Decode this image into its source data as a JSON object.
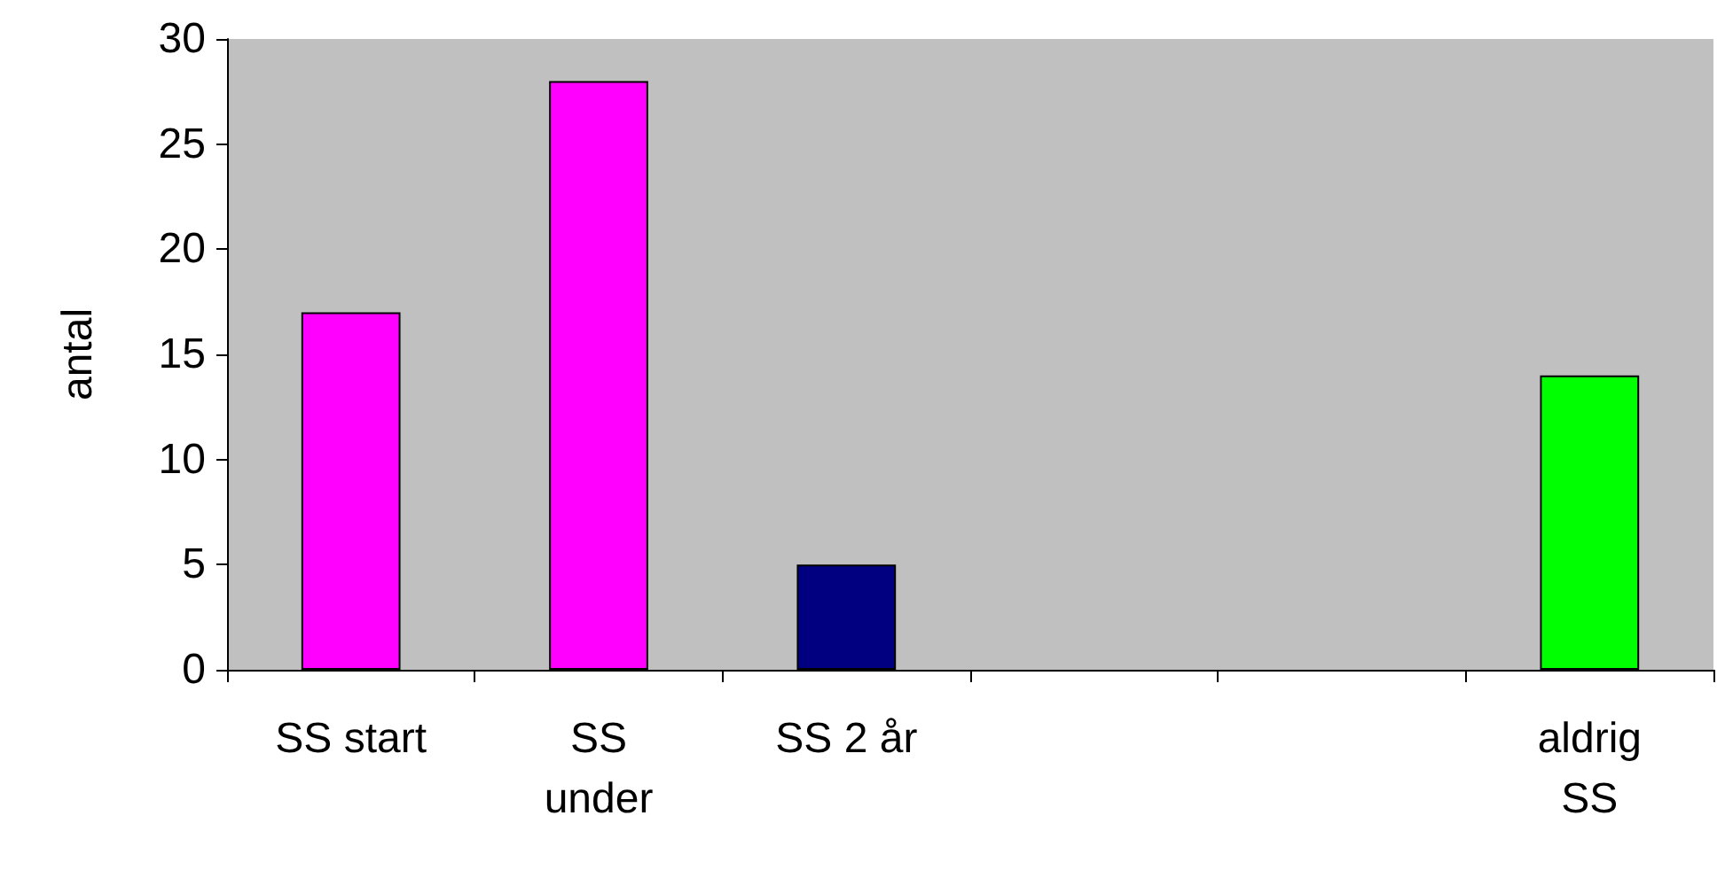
{
  "chart_data": {
    "type": "bar",
    "ylabel": "antal",
    "categories": [
      "SS start",
      "SS\nunder",
      "SS 2 år",
      null,
      null,
      "aldrig\nSS"
    ],
    "values": [
      17,
      28,
      5,
      null,
      null,
      14
    ],
    "colors": [
      "#ff00ff",
      "#ff00ff",
      "#000080",
      null,
      null,
      "#00ff00"
    ],
    "ylim": [
      0,
      30
    ],
    "yticks": [
      0,
      5,
      10,
      15,
      20,
      25,
      30
    ],
    "grid": false
  }
}
